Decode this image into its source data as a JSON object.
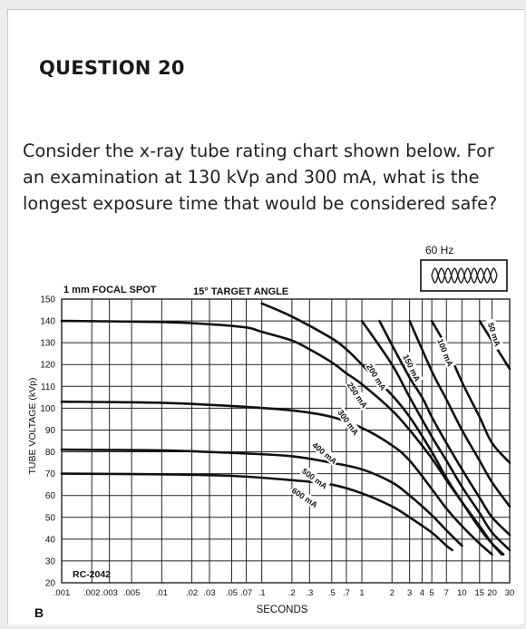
{
  "question": {
    "title": "QUESTION 20",
    "text": "Consider the x-ray tube rating chart shown below.  For an examination at 130 kVp and 300 mA, what is the longest exposure time that would be considered safe?"
  },
  "figure_label": "B",
  "chart_data": {
    "type": "line",
    "title_left": "1 mm FOCAL SPOT",
    "title_right": "15° TARGET ANGLE",
    "frequency_label": "60 Hz",
    "code_label": "RC-2042",
    "ylabel": "TUBE VOLTAGE (kVp)",
    "xlabel": "SECONDS",
    "x_scale": "log",
    "xlim": [
      0.001,
      30
    ],
    "ylim": [
      20,
      150
    ],
    "grid": true,
    "yticks": [
      20,
      30,
      40,
      50,
      60,
      70,
      80,
      90,
      100,
      110,
      120,
      130,
      140,
      150
    ],
    "xticks": [
      {
        "value": 0.001,
        "label": ".001"
      },
      {
        "value": 0.002,
        "label": ".002"
      },
      {
        "value": 0.003,
        "label": ".003"
      },
      {
        "value": 0.005,
        "label": ".005"
      },
      {
        "value": 0.01,
        "label": ".01"
      },
      {
        "value": 0.02,
        "label": ".02"
      },
      {
        "value": 0.03,
        "label": ".03"
      },
      {
        "value": 0.05,
        "label": ".05"
      },
      {
        "value": 0.07,
        "label": ".07"
      },
      {
        "value": 0.1,
        "label": ".1"
      },
      {
        "value": 0.2,
        "label": ".2"
      },
      {
        "value": 0.3,
        "label": ".3"
      },
      {
        "value": 0.5,
        "label": ".5"
      },
      {
        "value": 0.7,
        "label": ".7"
      },
      {
        "value": 1,
        "label": "1"
      },
      {
        "value": 2,
        "label": "2"
      },
      {
        "value": 3,
        "label": "3"
      },
      {
        "value": 4,
        "label": "4"
      },
      {
        "value": 5,
        "label": "5"
      },
      {
        "value": 7,
        "label": "7"
      },
      {
        "value": 10,
        "label": "10"
      },
      {
        "value": 15,
        "label": "15"
      },
      {
        "value": 20,
        "label": "20"
      },
      {
        "value": 30,
        "label": "30"
      }
    ],
    "series": [
      {
        "name": "50 mA",
        "points": [
          [
            15,
            140
          ],
          [
            30,
            118
          ]
        ]
      },
      {
        "name": "100 mA",
        "points": [
          [
            5,
            140
          ],
          [
            7,
            128
          ],
          [
            10,
            112
          ],
          [
            15,
            96
          ],
          [
            20,
            84
          ],
          [
            30,
            75
          ]
        ]
      },
      {
        "name": "150 mA",
        "points": [
          [
            3,
            140
          ],
          [
            5,
            117
          ],
          [
            7,
            104
          ],
          [
            10,
            90
          ],
          [
            15,
            76
          ],
          [
            20,
            66
          ],
          [
            30,
            55
          ]
        ]
      },
      {
        "name": "200 mA",
        "points": [
          [
            1.5,
            140
          ],
          [
            2,
            129
          ],
          [
            3,
            114
          ],
          [
            4,
            105
          ],
          [
            5,
            96
          ],
          [
            7,
            84
          ],
          [
            10,
            72
          ],
          [
            15,
            59
          ],
          [
            20,
            50
          ],
          [
            30,
            42
          ]
        ]
      },
      {
        "name": "250 mA",
        "points": [
          [
            1,
            140
          ],
          [
            2,
            120
          ],
          [
            3,
            105
          ],
          [
            5,
            87
          ],
          [
            7,
            76
          ],
          [
            10,
            64
          ],
          [
            15,
            52
          ],
          [
            20,
            43
          ],
          [
            30,
            35
          ]
        ]
      },
      {
        "name": "300 mA",
        "points": [
          [
            0.1,
            148
          ],
          [
            0.2,
            142
          ],
          [
            0.5,
            132
          ],
          [
            0.7,
            127
          ],
          [
            1,
            120
          ],
          [
            2,
            106
          ],
          [
            3,
            96
          ],
          [
            5,
            80
          ],
          [
            7,
            68
          ],
          [
            10,
            57
          ],
          [
            15,
            45
          ],
          [
            20,
            38
          ],
          [
            26,
            33
          ]
        ]
      },
      {
        "name": "400 mA",
        "points": [
          [
            0.001,
            103
          ],
          [
            0.01,
            102.5
          ],
          [
            0.05,
            101
          ],
          [
            0.2,
            99
          ],
          [
            0.5,
            96
          ],
          [
            1,
            91
          ],
          [
            2,
            83
          ],
          [
            3,
            76
          ],
          [
            5,
            63
          ],
          [
            7,
            54
          ],
          [
            10,
            46
          ],
          [
            15,
            38
          ],
          [
            20,
            33
          ]
        ]
      },
      {
        "name": "500 mA",
        "points": [
          [
            0.001,
            81
          ],
          [
            0.01,
            80.7
          ],
          [
            0.05,
            79.5
          ],
          [
            0.2,
            78
          ],
          [
            0.5,
            75
          ],
          [
            1,
            72
          ],
          [
            2,
            66
          ],
          [
            3,
            60
          ],
          [
            5,
            51
          ],
          [
            7,
            44
          ],
          [
            10,
            37
          ]
        ]
      },
      {
        "name": "600 mA",
        "points": [
          [
            0.001,
            70
          ],
          [
            0.01,
            69.7
          ],
          [
            0.05,
            69
          ],
          [
            0.2,
            67
          ],
          [
            0.5,
            65
          ],
          [
            1,
            61
          ],
          [
            2,
            55
          ],
          [
            3,
            50
          ],
          [
            5,
            43
          ],
          [
            7,
            37
          ],
          [
            8,
            35
          ]
        ]
      },
      {
        "name": "",
        "points": [
          [
            0.001,
            140
          ],
          [
            0.01,
            139.5
          ],
          [
            0.03,
            138.5
          ],
          [
            0.07,
            137
          ],
          [
            0.1,
            135
          ],
          [
            0.2,
            131
          ],
          [
            0.3,
            127
          ],
          [
            0.5,
            121
          ],
          [
            0.7,
            116
          ],
          [
            1,
            111
          ],
          [
            2,
            99
          ],
          [
            3,
            90
          ],
          [
            5,
            77
          ],
          [
            7,
            67
          ],
          [
            10,
            57
          ],
          [
            15,
            46
          ],
          [
            20,
            38
          ],
          [
            25,
            33
          ]
        ]
      }
    ]
  }
}
